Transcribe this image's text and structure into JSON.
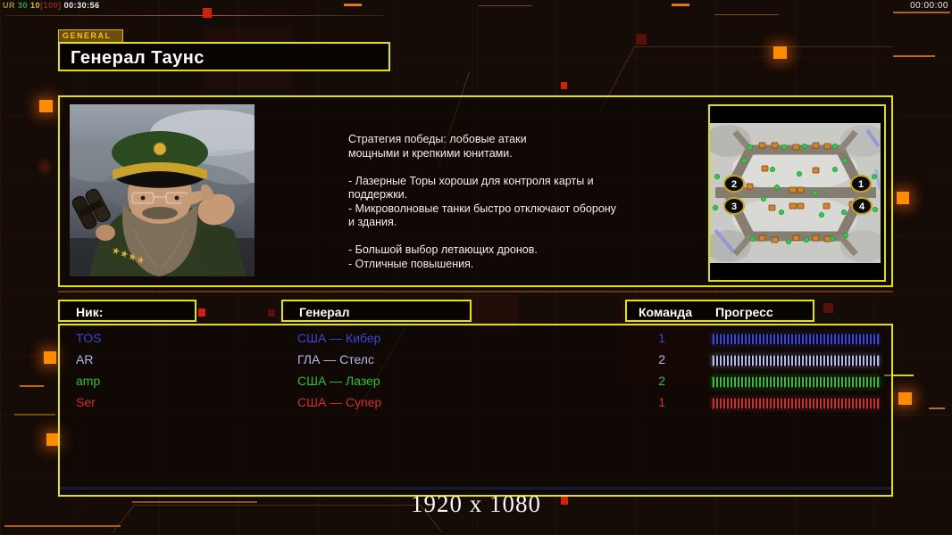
{
  "hud": {
    "session": {
      "label": "UR",
      "stat1": "30",
      "stat2": "10",
      "stat3": "[100]",
      "time": "00:30:56"
    },
    "clock": "00:00:00"
  },
  "tab": {
    "label": "GENERAL"
  },
  "header": {
    "title": "Генерал Таунс"
  },
  "briefing": {
    "text": "Стратегия победы: лобовые атаки\nмощными и крепкими юнитами.\n\n- Лазерные Торы хороши для контроля карты и\n поддержки.\n- Микроволновые танки быстро отключают оборону\n и здания.\n\n- Большой выбор летающих дронов.\n- Отличные повышения."
  },
  "map": {
    "positions": [
      "1",
      "2",
      "3",
      "4"
    ]
  },
  "players": {
    "headers": {
      "nick": "Ник:",
      "general": "Генерал",
      "team": "Команда",
      "progress": "Прогресс"
    },
    "rows": [
      {
        "nick": "TOS",
        "general": "США — Кибер",
        "team": "1",
        "color": "#3a46d8",
        "progress": 100
      },
      {
        "nick": "AR",
        "general": "ГЛА — Стелс",
        "team": "2",
        "color": "#b4b9ea",
        "progress": 100
      },
      {
        "nick": "amp",
        "general": "США — Лазер",
        "team": "2",
        "color": "#2fc02f",
        "progress": 100
      },
      {
        "nick": "Ser",
        "general": "США — Супер",
        "team": "1",
        "color": "#d42c2c",
        "progress": 100
      }
    ]
  },
  "footer": {
    "resolution": "1920 x 1080"
  },
  "colors": {
    "accent_yellow": "#e4e400",
    "accent_orange": "#ff8c00",
    "tab_text": "#f4c41c"
  }
}
